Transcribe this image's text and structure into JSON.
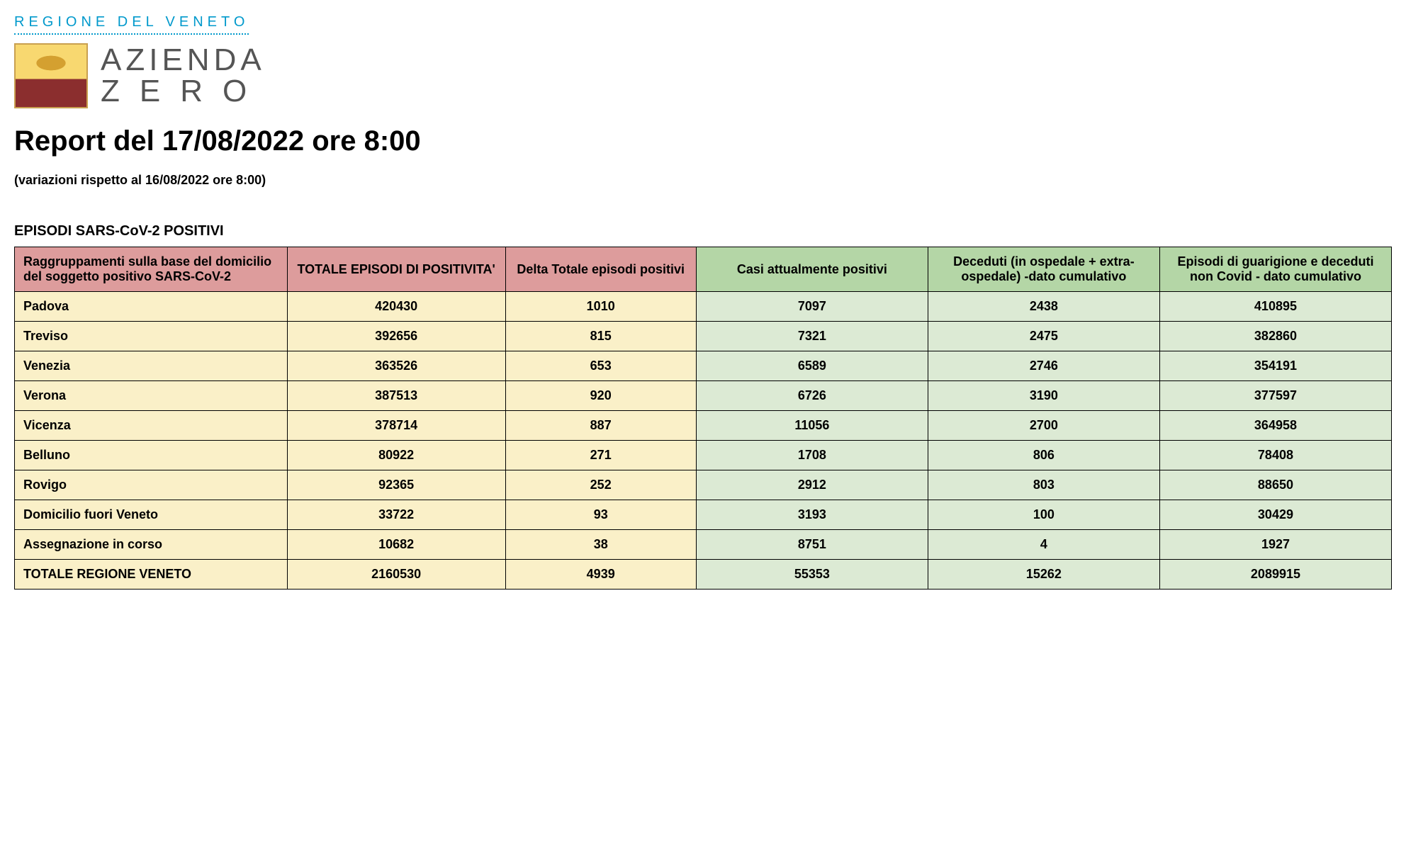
{
  "header": {
    "region_label": "REGIONE DEL VENETO",
    "brand_top": "AZIENDA",
    "brand_bot": "ZERO",
    "report_title": "Report del 17/08/2022 ore 8:00",
    "subtitle": "(variazioni rispetto al 16/08/2022 ore 8:00)"
  },
  "table": {
    "section_title": "EPISODI SARS-CoV-2 POSITIVI",
    "columns": [
      {
        "label": "Raggruppamenti sulla base del domicilio del soggetto positivo SARS-CoV-2",
        "group": "red",
        "align": "left"
      },
      {
        "label": "TOTALE EPISODI DI POSITIVITA'",
        "group": "red",
        "align": "center"
      },
      {
        "label": "Delta Totale episodi positivi",
        "group": "red",
        "align": "center"
      },
      {
        "label": "Casi attualmente positivi",
        "group": "green",
        "align": "center"
      },
      {
        "label": "Deceduti (in ospedale + extra-ospedale) -dato cumulativo",
        "group": "green",
        "align": "center"
      },
      {
        "label": "Episodi di guarigione e deceduti non Covid - dato cumulativo",
        "group": "green",
        "align": "center"
      }
    ],
    "rows": [
      {
        "label": "Padova",
        "values": [
          "420430",
          "1010",
          "7097",
          "2438",
          "410895"
        ]
      },
      {
        "label": "Treviso",
        "values": [
          "392656",
          "815",
          "7321",
          "2475",
          "382860"
        ]
      },
      {
        "label": "Venezia",
        "values": [
          "363526",
          "653",
          "6589",
          "2746",
          "354191"
        ]
      },
      {
        "label": "Verona",
        "values": [
          "387513",
          "920",
          "6726",
          "3190",
          "377597"
        ]
      },
      {
        "label": "Vicenza",
        "values": [
          "378714",
          "887",
          "11056",
          "2700",
          "364958"
        ]
      },
      {
        "label": "Belluno",
        "values": [
          "80922",
          "271",
          "1708",
          "806",
          "78408"
        ]
      },
      {
        "label": "Rovigo",
        "values": [
          "92365",
          "252",
          "2912",
          "803",
          "88650"
        ]
      },
      {
        "label": "Domicilio fuori Veneto",
        "values": [
          "33722",
          "93",
          "3193",
          "100",
          "30429"
        ]
      },
      {
        "label": "Assegnazione in corso",
        "values": [
          "10682",
          "38",
          "8751",
          "4",
          "1927"
        ]
      }
    ],
    "total_row": {
      "label": "TOTALE REGIONE VENETO",
      "values": [
        "2160530",
        "4939",
        "55353",
        "15262",
        "2089915"
      ]
    },
    "colors": {
      "header_red": "#dd9c9c",
      "header_green": "#b4d6a6",
      "cell_yellow": "#faf0c8",
      "cell_green": "#dcead4",
      "border": "#000000",
      "region_blue": "#0099cc"
    },
    "fonts": {
      "header_pt": 18,
      "cell_pt": 18,
      "title_pt": 40,
      "subtitle_pt": 18,
      "section_pt": 20
    }
  }
}
